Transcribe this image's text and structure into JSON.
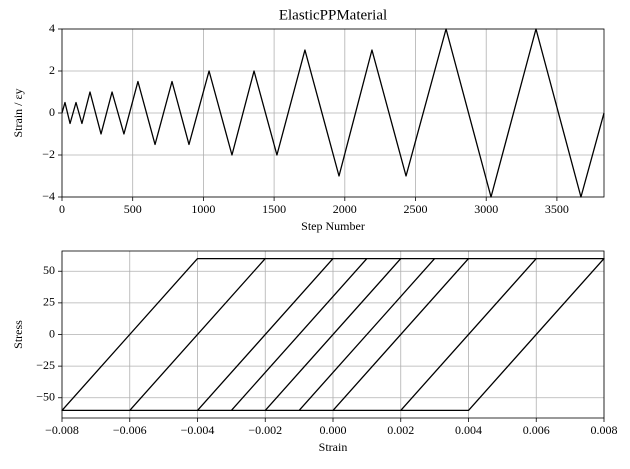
{
  "chart_data": [
    {
      "type": "line",
      "title": "ElasticPPMaterial",
      "xlabel": "Step Number",
      "ylabel": "Strain / εy",
      "x": [
        0,
        21,
        57,
        99,
        141,
        198,
        276,
        354,
        438,
        537,
        658,
        778,
        898,
        1040,
        1202,
        1358,
        1520,
        1718,
        1959,
        2192,
        2433,
        2716,
        3034,
        3352,
        3670,
        3833
      ],
      "series": [
        {
          "color": "#000000",
          "values": [
            0,
            0.5,
            -0.5,
            0.5,
            -0.5,
            1,
            -1,
            1,
            -1,
            1.5,
            -1.5,
            1.5,
            -1.5,
            2,
            -2,
            2,
            -2,
            3,
            -3,
            3,
            -3,
            4,
            -4,
            4,
            -4,
            0
          ]
        }
      ],
      "xlim": [
        0,
        3833
      ],
      "ylim": [
        -4,
        4
      ],
      "xticks": [
        0,
        500,
        1000,
        1500,
        2000,
        2500,
        3000,
        3500
      ],
      "yticks": [
        {
          "value": -4,
          "label": "−4"
        },
        {
          "value": -2,
          "label": "−2"
        },
        0,
        2,
        4
      ],
      "grid": true
    },
    {
      "type": "line",
      "xlabel": "Strain",
      "ylabel": "Stress",
      "x": [
        0,
        0.001,
        -0.001,
        0.001,
        -0.001,
        0.002,
        -0.002,
        0.002,
        -0.002,
        0.002,
        0.003,
        -0.001,
        -0.003,
        0.001,
        0.003,
        -0.001,
        -0.003,
        0.001,
        0.004,
        0,
        -0.004,
        0,
        0.004,
        0,
        -0.004,
        0,
        0.006,
        0.002,
        -0.006,
        -0.002,
        0.006,
        0.002,
        -0.006,
        -0.002,
        0.008,
        0.004,
        -0.008,
        -0.004,
        0.008,
        0.004,
        -0.008,
        -0.004,
        0
      ],
      "series": [
        {
          "color": "#000000",
          "values": [
            0,
            30,
            -30,
            30,
            -30,
            60,
            -60,
            60,
            -60,
            60,
            60,
            -60,
            -60,
            60,
            60,
            -60,
            -60,
            60,
            60,
            -60,
            -60,
            60,
            60,
            -60,
            -60,
            60,
            60,
            -60,
            -60,
            60,
            60,
            -60,
            -60,
            60,
            60,
            -60,
            -60,
            60,
            60,
            -60,
            -60,
            60,
            60
          ]
        }
      ],
      "xlim": [
        -0.008,
        0.008
      ],
      "ylim": [
        -66,
        66
      ],
      "xticks": [
        {
          "value": -0.008,
          "label": "−0.008"
        },
        {
          "value": -0.006,
          "label": "−0.006"
        },
        {
          "value": -0.004,
          "label": "−0.004"
        },
        {
          "value": -0.002,
          "label": "−0.002"
        },
        {
          "value": 0,
          "label": "0.000"
        },
        {
          "value": 0.002,
          "label": "0.002"
        },
        {
          "value": 0.004,
          "label": "0.004"
        },
        {
          "value": 0.006,
          "label": "0.006"
        },
        {
          "value": 0.008,
          "label": "0.008"
        }
      ],
      "yticks": [
        {
          "value": -50,
          "label": "−50"
        },
        {
          "value": -25,
          "label": "−25"
        },
        0,
        25,
        50
      ],
      "grid": true
    }
  ]
}
